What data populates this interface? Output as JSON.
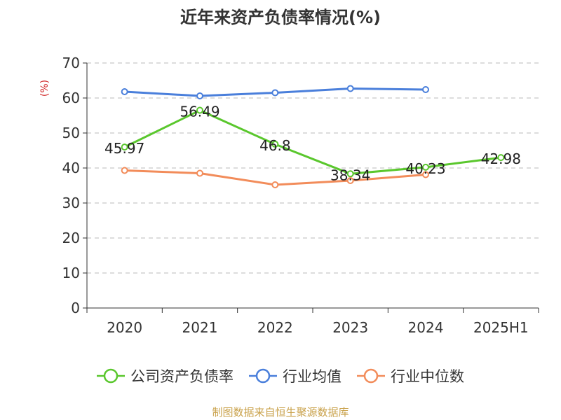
{
  "title": "近年来资产负债率情况(%)",
  "footer": "制图数据来自恒生聚源数据库",
  "chart_data": {
    "type": "line",
    "categories": [
      "2020",
      "2021",
      "2022",
      "2023",
      "2024",
      "2025H1"
    ],
    "ylabel": "(%)",
    "ylim": [
      0,
      70
    ],
    "yticks": [
      0,
      10,
      20,
      30,
      40,
      50,
      60,
      70
    ],
    "grid": true,
    "legend_position": "bottom",
    "series": [
      {
        "name": "公司资产负债率",
        "color": "#5ac72d",
        "show_labels": true,
        "values": [
          45.97,
          56.49,
          46.8,
          38.34,
          40.23,
          42.98
        ],
        "labels": [
          "45.97",
          "56.49",
          "46.8",
          "38.34",
          "40.23",
          "42.98"
        ]
      },
      {
        "name": "行业均值",
        "color": "#4a7fdb",
        "show_labels": false,
        "values": [
          61.8,
          60.6,
          61.5,
          62.7,
          62.4,
          null
        ]
      },
      {
        "name": "行业中位数",
        "color": "#f28c5a",
        "show_labels": false,
        "values": [
          39.3,
          38.5,
          35.2,
          36.4,
          38.1,
          null
        ]
      }
    ]
  }
}
